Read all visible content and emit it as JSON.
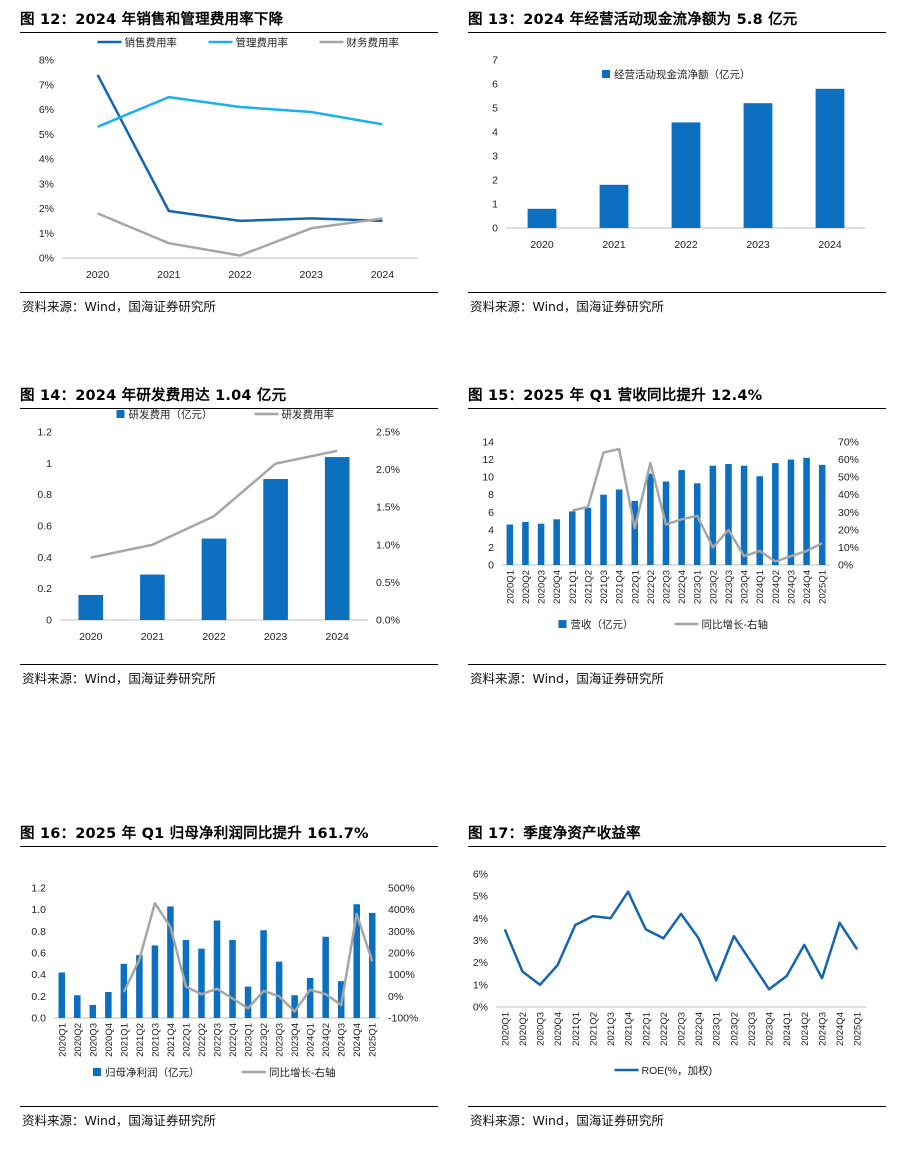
{
  "panels": [
    {
      "title": "图 12：2024 年销售和管理费用率下降",
      "source": "资料来源：Wind，国海证券研究所",
      "chart_data": {
        "type": "line",
        "categories": [
          "2020",
          "2021",
          "2022",
          "2023",
          "2024"
        ],
        "yticks": [
          "0%",
          "1%",
          "2%",
          "3%",
          "4%",
          "5%",
          "6%",
          "7%",
          "8%"
        ],
        "ylim": [
          0,
          8
        ],
        "legend_position": "top",
        "series": [
          {
            "name": "销售费用率",
            "values": [
              7.4,
              1.9,
              1.5,
              1.6,
              1.5
            ],
            "color": "#1466b0"
          },
          {
            "name": "管理费用率",
            "values": [
              5.3,
              6.5,
              6.1,
              5.9,
              5.4
            ],
            "color": "#1ab0e8"
          },
          {
            "name": "财务费用率",
            "values": [
              1.8,
              0.6,
              0.1,
              1.2,
              1.6
            ],
            "color": "#a6a6a6"
          }
        ]
      }
    },
    {
      "title": "图 13：2024 年经营活动现金流净额为 5.8 亿元",
      "source": "资料来源：Wind，国海证券研究所",
      "chart_data": {
        "type": "bar",
        "categories": [
          "2020",
          "2021",
          "2022",
          "2023",
          "2024"
        ],
        "yticks": [
          "0",
          "1",
          "2",
          "3",
          "4",
          "5",
          "6",
          "7"
        ],
        "ylim": [
          0,
          7
        ],
        "legend_position": "top",
        "series": [
          {
            "name": "经营活动现金流净额（亿元）",
            "values": [
              0.8,
              1.8,
              4.4,
              5.2,
              5.8
            ],
            "color": "#0c6fbf"
          }
        ]
      }
    },
    {
      "title": "图 14：2024 年研发费用达 1.04 亿元",
      "source": "资料来源：Wind，国海证券研究所",
      "chart_data": {
        "type": "bar",
        "categories": [
          "2020",
          "2021",
          "2022",
          "2023",
          "2024"
        ],
        "yticks": [
          "0",
          "0.2",
          "0.4",
          "0.6",
          "0.8",
          "1",
          "1.2"
        ],
        "ylim": [
          0,
          1.2
        ],
        "y2ticks": [
          "0.0%",
          "0.5%",
          "1.0%",
          "1.5%",
          "2.0%",
          "2.5%"
        ],
        "y2lim": [
          0,
          2.5
        ],
        "legend_position": "top",
        "series": [
          {
            "name": "研发费用（亿元）",
            "values": [
              0.16,
              0.29,
              0.52,
              0.9,
              1.04
            ],
            "color": "#0c6fbf",
            "kind": "bar"
          },
          {
            "name": "研发费用率",
            "values": [
              0.83,
              1.0,
              1.38,
              2.08,
              2.25
            ],
            "color": "#a6a6a6",
            "kind": "line",
            "axis": "right"
          }
        ]
      }
    },
    {
      "title": "图 15：2025 年 Q1 营收同比提升 12.4%",
      "source": "资料来源：Wind，国海证券研究所",
      "chart_data": {
        "type": "bar",
        "categories": [
          "2020Q1",
          "2020Q2",
          "2020Q3",
          "2020Q4",
          "2021Q1",
          "2021Q2",
          "2021Q3",
          "2021Q4",
          "2022Q1",
          "2022Q2",
          "2022Q3",
          "2022Q4",
          "2023Q1",
          "2023Q2",
          "2023Q3",
          "2023Q4",
          "2024Q1",
          "2024Q2",
          "2024Q3",
          "2024Q4",
          "2025Q1"
        ],
        "yticks": [
          "0",
          "2",
          "4",
          "6",
          "8",
          "10",
          "12",
          "14"
        ],
        "ylim": [
          0,
          14
        ],
        "y2ticks": [
          "0%",
          "10%",
          "20%",
          "30%",
          "40%",
          "50%",
          "60%",
          "70%"
        ],
        "y2lim": [
          0,
          70
        ],
        "legend_position": "bottom",
        "series": [
          {
            "name": "营收（亿元）",
            "values": [
              4.6,
              4.9,
              4.7,
              5.2,
              6.1,
              6.5,
              8.0,
              8.6,
              7.3,
              10.4,
              9.5,
              10.8,
              9.3,
              11.3,
              11.5,
              11.3,
              10.1,
              11.6,
              12.0,
              12.2,
              11.4
            ],
            "color": "#0c6fbf",
            "kind": "bar"
          },
          {
            "name": "同比增长-右轴",
            "values": [
              null,
              null,
              null,
              null,
              31,
              33,
              64,
              66,
              21,
              58,
              23,
              26,
              28,
              10,
              20,
              5,
              8,
              2,
              5,
              8,
              12.4
            ],
            "color": "#a6a6a6",
            "kind": "line",
            "axis": "right"
          }
        ]
      }
    },
    {
      "title": "图 16：2025 年 Q1 归母净利润同比提升 161.7%",
      "source": "资料来源：Wind，国海证券研究所",
      "chart_data": {
        "type": "bar",
        "categories": [
          "2020Q1",
          "2020Q2",
          "2020Q3",
          "2020Q4",
          "2021Q1",
          "2021Q2",
          "2021Q3",
          "2021Q4",
          "2022Q1",
          "2022Q2",
          "2022Q3",
          "2022Q4",
          "2023Q1",
          "2023Q2",
          "2023Q3",
          "2023Q4",
          "2024Q1",
          "2024Q2",
          "2024Q3",
          "2024Q4",
          "2025Q1"
        ],
        "yticks": [
          "0.0",
          "0.2",
          "0.4",
          "0.6",
          "0.8",
          "1.0",
          "1.2"
        ],
        "ylim": [
          0,
          1.2
        ],
        "y2ticks": [
          "-100%",
          "0%",
          "100%",
          "200%",
          "300%",
          "400%",
          "500%"
        ],
        "y2lim": [
          -100,
          500
        ],
        "legend_position": "bottom",
        "series": [
          {
            "name": "归母净利润（亿元）",
            "values": [
              0.42,
              0.21,
              0.12,
              0.24,
              0.5,
              0.58,
              0.67,
              1.03,
              0.72,
              0.64,
              0.9,
              0.72,
              0.29,
              0.81,
              0.52,
              0.21,
              0.37,
              0.75,
              0.34,
              1.05,
              0.97
            ],
            "color": "#0c6fbf",
            "kind": "bar"
          },
          {
            "name": "同比增长-右轴",
            "values": [
              null,
              null,
              null,
              null,
              20,
              170,
              430,
              320,
              45,
              10,
              35,
              -10,
              -55,
              25,
              0,
              -70,
              30,
              10,
              -40,
              380,
              161.7
            ],
            "color": "#a6a6a6",
            "kind": "line",
            "axis": "right"
          }
        ]
      }
    },
    {
      "title": "图 17：季度净资产收益率",
      "source": "资料来源：Wind，国海证券研究所",
      "chart_data": {
        "type": "line",
        "categories": [
          "2020Q1",
          "2020Q2",
          "2020Q3",
          "2020Q4",
          "2021Q1",
          "2021Q2",
          "2021Q3",
          "2021Q4",
          "2022Q1",
          "2022Q2",
          "2022Q3",
          "2022Q4",
          "2023Q1",
          "2023Q2",
          "2023Q3",
          "2023Q4",
          "2024Q1",
          "2024Q2",
          "2024Q3",
          "2024Q4",
          "2025Q1"
        ],
        "yticks": [
          "0%",
          "1%",
          "2%",
          "3%",
          "4%",
          "5%",
          "6%"
        ],
        "ylim": [
          0,
          6
        ],
        "legend_position": "bottom",
        "series": [
          {
            "name": "ROE(%，加权)",
            "values": [
              3.5,
              1.6,
              1.0,
              1.9,
              3.7,
              4.1,
              4.0,
              5.2,
              3.5,
              3.1,
              4.2,
              3.1,
              1.2,
              3.2,
              2.0,
              0.8,
              1.4,
              2.8,
              1.3,
              3.8,
              2.6
            ],
            "color": "#1466b0"
          }
        ]
      }
    }
  ]
}
